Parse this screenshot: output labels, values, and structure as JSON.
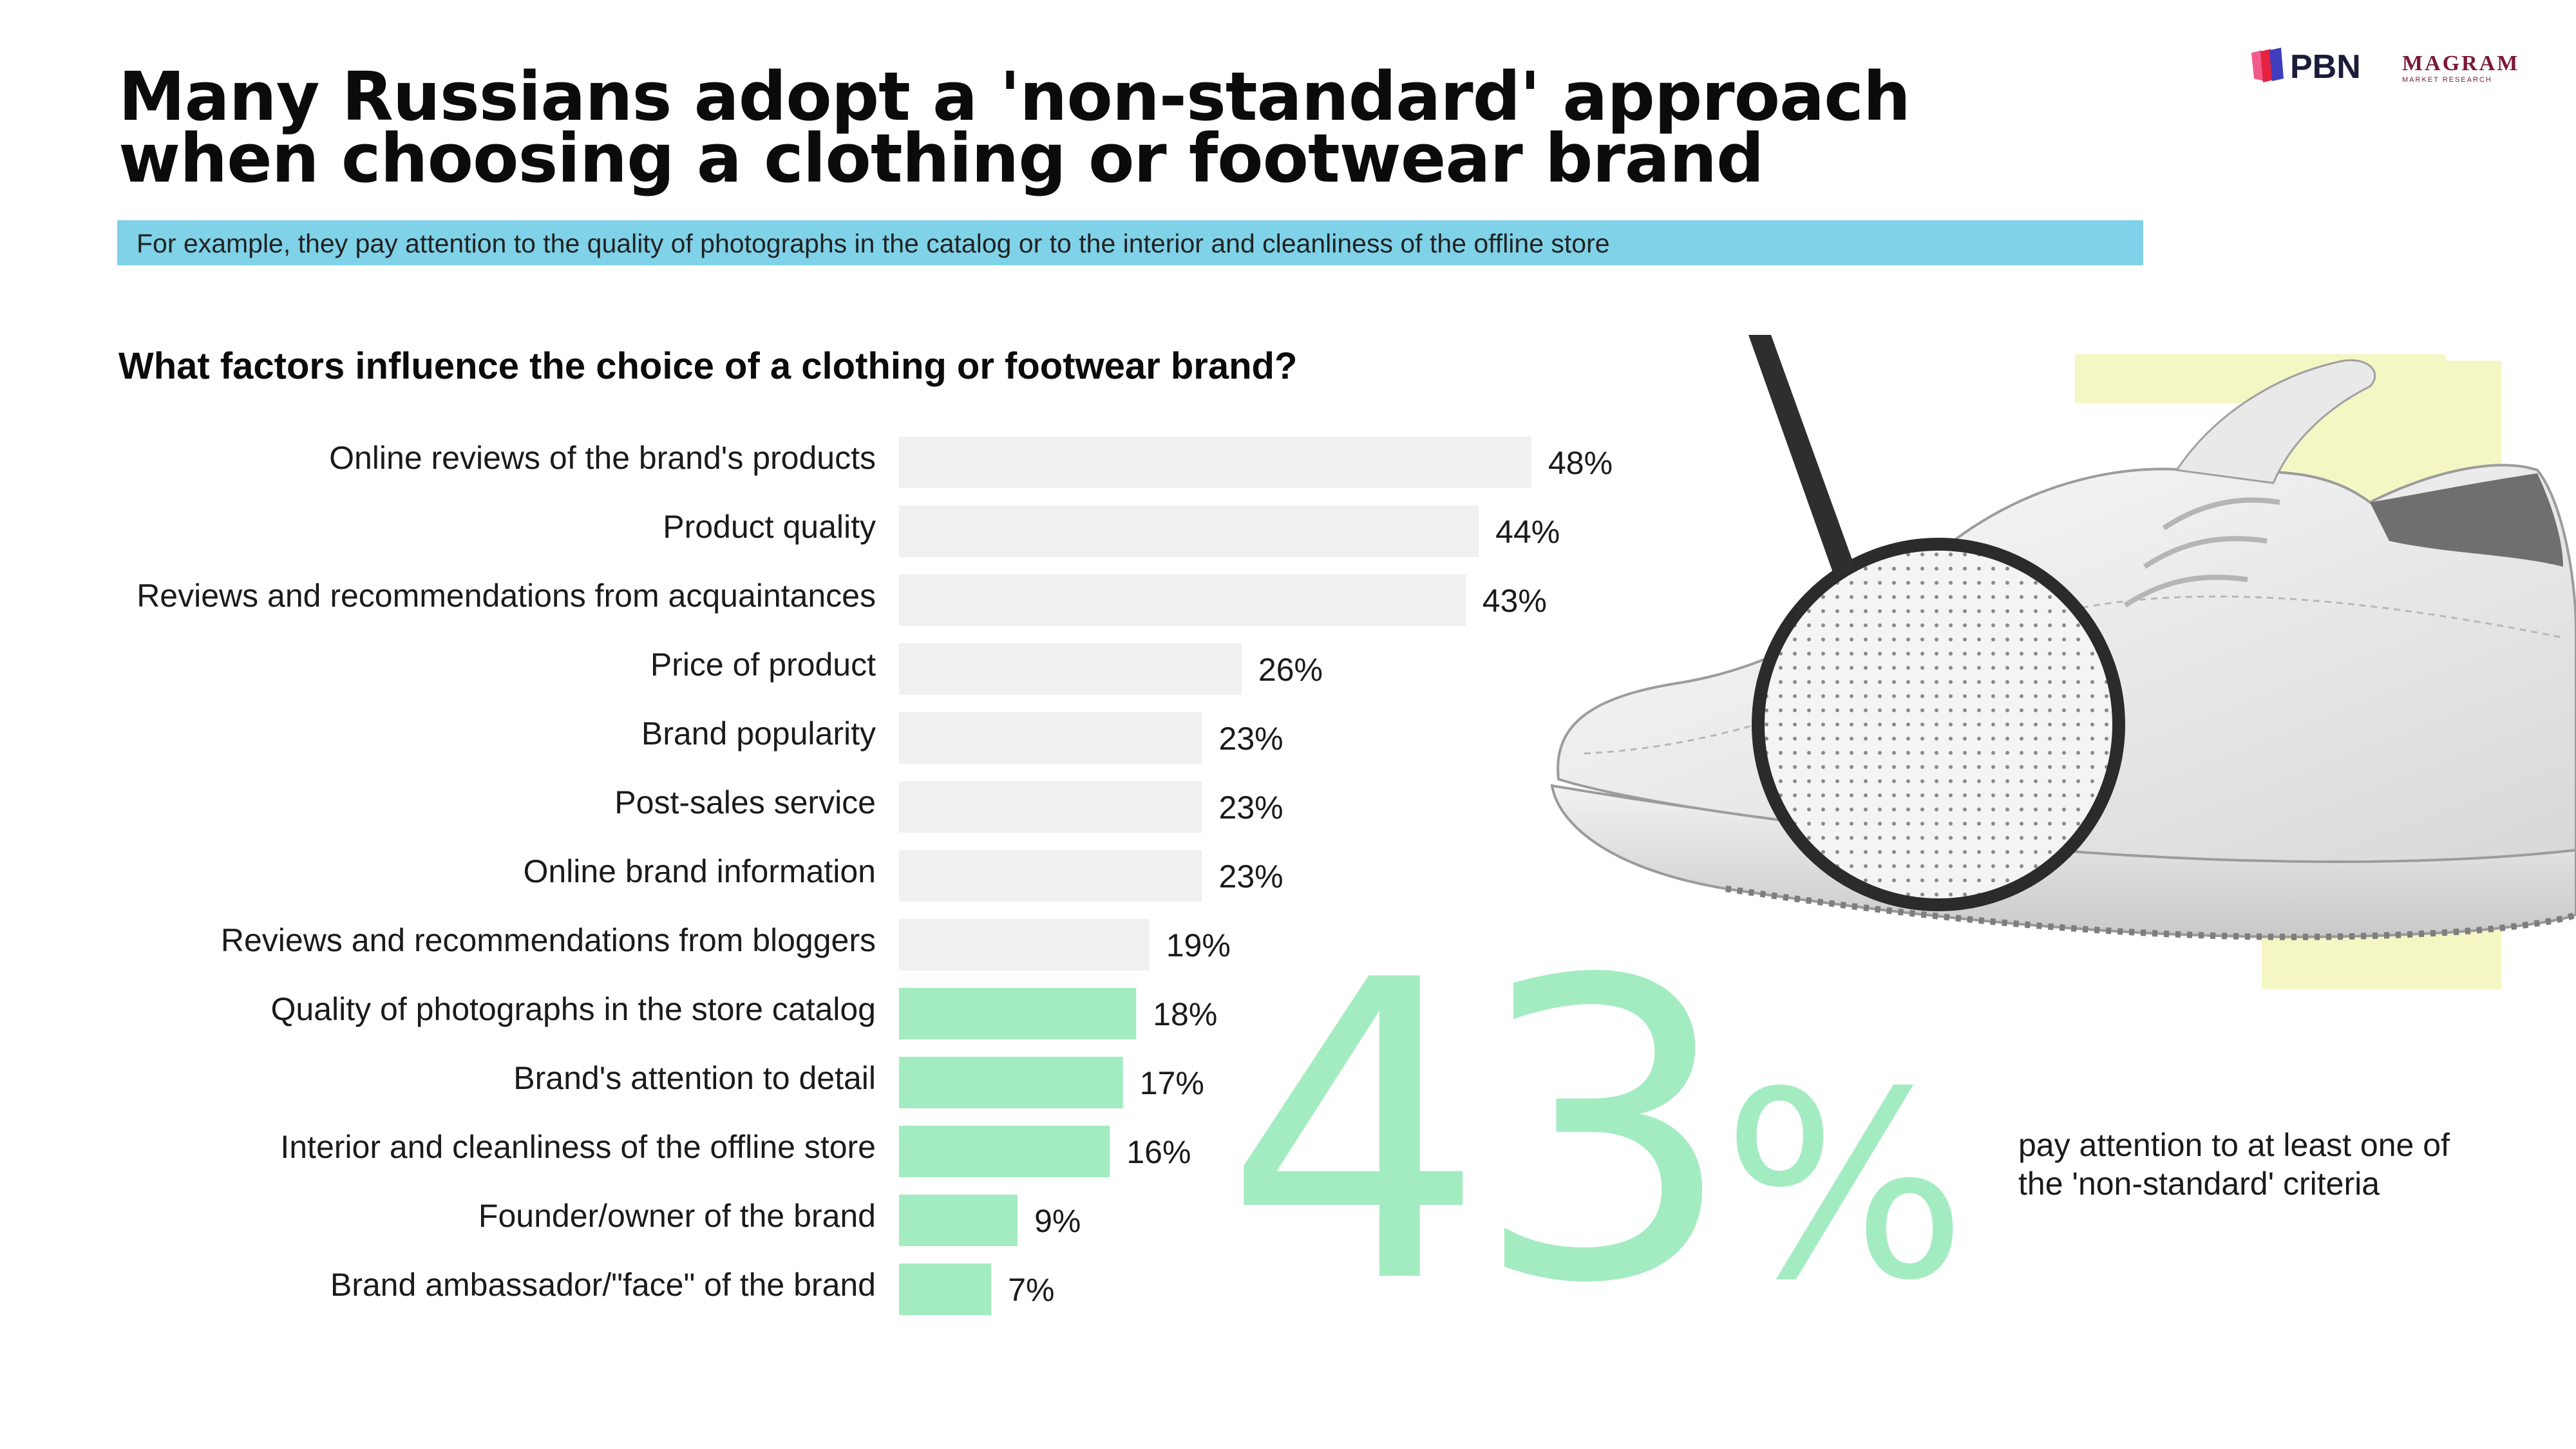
{
  "header": {
    "title": "Many Russians adopt a 'non-standard' approach when choosing a clothing or footwear brand",
    "subtitle": "For example, they pay attention to the quality of photographs in the catalog or to the interior and cleanliness of the offline store",
    "question": "What factors influence the choice of a clothing or footwear brand?"
  },
  "logos": {
    "pbn": "PBN",
    "magram": "MAGRAM",
    "magram_sub": "MARKET RESEARCH"
  },
  "highlight": {
    "value": "43",
    "unit": "%",
    "caption": "pay attention to at least one of the 'non-standard' criteria"
  },
  "colors": {
    "standard": "#f0f0f0",
    "non_standard": "#a3ecc1",
    "subtitle_bg": "#7fd2e8",
    "deco_yellow": "#f4f7c4"
  },
  "chart_data": {
    "type": "bar",
    "orientation": "horizontal",
    "title": "What factors influence the choice of a clothing or footwear brand?",
    "categories": [
      "Online reviews of the brand's products",
      "Product quality",
      "Reviews and recommendations from acquaintances",
      "Price of product",
      "Brand popularity",
      "Post-sales service",
      "Online brand information",
      "Reviews and recommendations from bloggers",
      "Quality of photographs in the store catalog",
      "Brand's attention to detail",
      "Interior and cleanliness of the offline store",
      "Founder/owner of the brand",
      "Brand ambassador/\"face\" of the brand"
    ],
    "values": [
      48,
      44,
      43,
      26,
      23,
      23,
      23,
      19,
      18,
      17,
      16,
      9,
      7
    ],
    "labels": [
      "48%",
      "44%",
      "43%",
      "26%",
      "23%",
      "23%",
      "23%",
      "19%",
      "18%",
      "17%",
      "16%",
      "9%",
      "7%"
    ],
    "highlighted": [
      false,
      false,
      false,
      false,
      false,
      false,
      false,
      false,
      true,
      true,
      true,
      true,
      true
    ],
    "xlim": [
      0,
      48
    ],
    "grid": false,
    "legend": "none"
  }
}
